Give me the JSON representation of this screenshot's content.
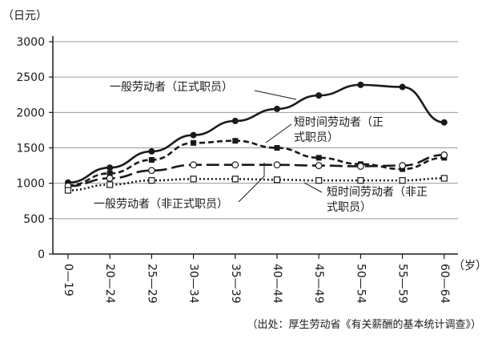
{
  "chart_data": {
    "type": "line",
    "ylabel": "（日元）",
    "xunit": "（岁）",
    "ylim": [
      0,
      3000
    ],
    "yticks": [
      0,
      500,
      1000,
      1500,
      2000,
      2500,
      3000
    ],
    "grid": true,
    "categories": [
      "0—19",
      "20—24",
      "25—29",
      "30—34",
      "35—39",
      "40—44",
      "45—49",
      "50—54",
      "55—59",
      "60—64"
    ],
    "series": [
      {
        "key": "regular",
        "name": "一般劳动者（正式职员）",
        "style": "solid",
        "marker": "filled-circle",
        "values": [
          1010,
          1220,
          1450,
          1680,
          1880,
          2050,
          2240,
          2390,
          2360,
          1860
        ]
      },
      {
        "key": "parttime_regular",
        "name": "短时间劳动者（正式职员）",
        "style": "short-dash",
        "marker": "filled-square",
        "values": [
          970,
          1140,
          1330,
          1570,
          1600,
          1500,
          1360,
          1270,
          1200,
          1360
        ]
      },
      {
        "key": "regular_nonregular",
        "name": "一般劳动者（非正式职员）",
        "style": "long-dash",
        "marker": "open-circle",
        "values": [
          960,
          1070,
          1180,
          1260,
          1260,
          1260,
          1250,
          1240,
          1250,
          1400
        ]
      },
      {
        "key": "parttime_nonregular",
        "name": "短时间劳动者（非正式职员）",
        "style": "dotted",
        "marker": "open-square",
        "values": [
          900,
          980,
          1040,
          1060,
          1060,
          1050,
          1040,
          1040,
          1040,
          1070
        ]
      }
    ],
    "annotations": [
      {
        "series": "regular",
        "lines": [
          "一般劳动者（正式职员）"
        ]
      },
      {
        "series": "parttime_regular",
        "lines": [
          "短时间劳动者（正",
          "式职员）"
        ]
      },
      {
        "series": "regular_nonregular",
        "lines": [
          "一般劳动者（非正式职员）"
        ]
      },
      {
        "series": "parttime_nonregular",
        "lines": [
          "短时间劳动者（非正",
          "式职员）"
        ]
      }
    ],
    "source": "（出处：厚生劳动省《有关薪酬的基本统计调查》）"
  }
}
